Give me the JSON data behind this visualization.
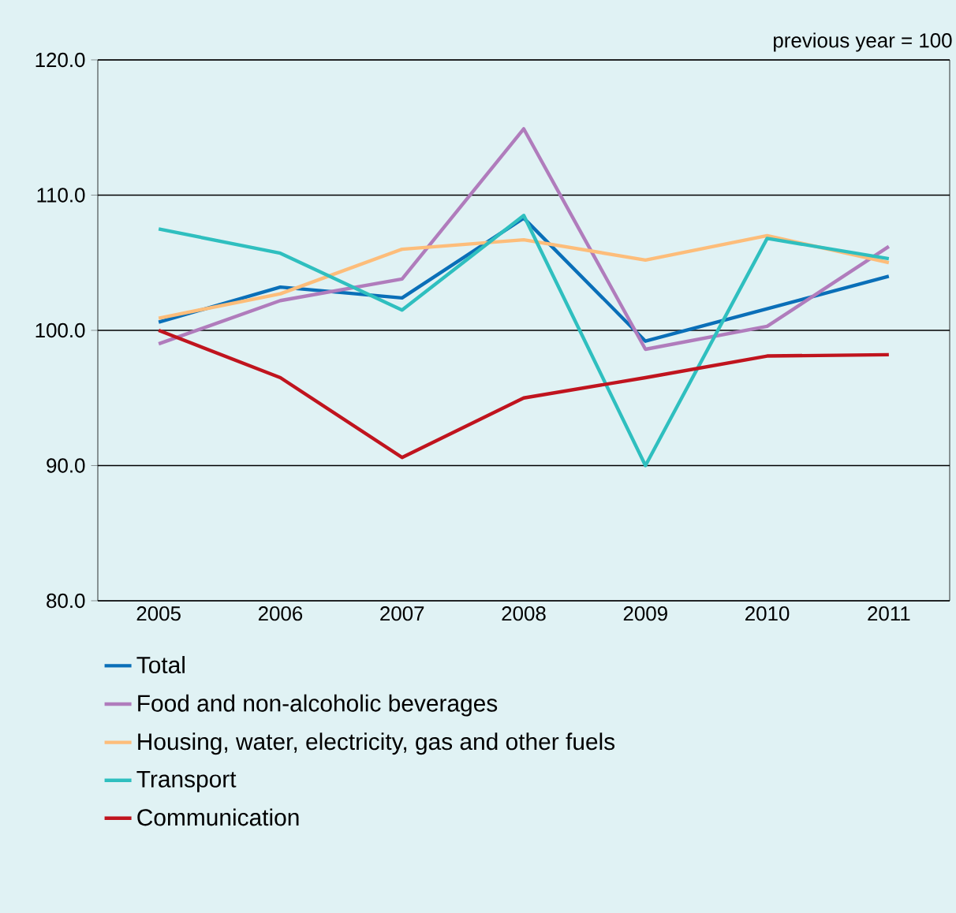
{
  "chart_data": {
    "type": "line",
    "annotations": [
      "previous year = 100"
    ],
    "categories": [
      "2005",
      "2006",
      "2007",
      "2008",
      "2009",
      "2010",
      "2011"
    ],
    "series": [
      {
        "name": "Total",
        "color": "#0a6fb8",
        "values": [
          100.6,
          103.2,
          102.4,
          108.3,
          99.2,
          101.6,
          104.0
        ]
      },
      {
        "name": "Food and non-alcoholic beverages",
        "color": "#b07cbc",
        "values": [
          99.0,
          102.2,
          103.8,
          114.9,
          98.6,
          100.3,
          106.2
        ]
      },
      {
        "name": "Housing, water, electricity, gas and other fuels",
        "color": "#fdbd7a",
        "values": [
          100.9,
          102.7,
          106.0,
          106.7,
          105.2,
          107.0,
          105.0
        ]
      },
      {
        "name": "Transport",
        "color": "#2fbfbf",
        "values": [
          107.5,
          105.7,
          101.5,
          108.5,
          90.0,
          106.8,
          105.3
        ]
      },
      {
        "name": "Communication",
        "color": "#c0141e",
        "values": [
          100.0,
          96.5,
          90.6,
          95.0,
          96.5,
          98.1,
          98.2
        ]
      }
    ],
    "ylim": [
      80,
      120
    ],
    "yticks": [
      {
        "value": 80,
        "label": "80.0"
      },
      {
        "value": 90,
        "label": "90.0"
      },
      {
        "value": 100,
        "label": "100.0"
      },
      {
        "value": 110,
        "label": "110.0"
      },
      {
        "value": 120,
        "label": "120.0"
      }
    ],
    "grid": "y",
    "legend": "bottom",
    "marker": "none",
    "line_style": "solid"
  }
}
